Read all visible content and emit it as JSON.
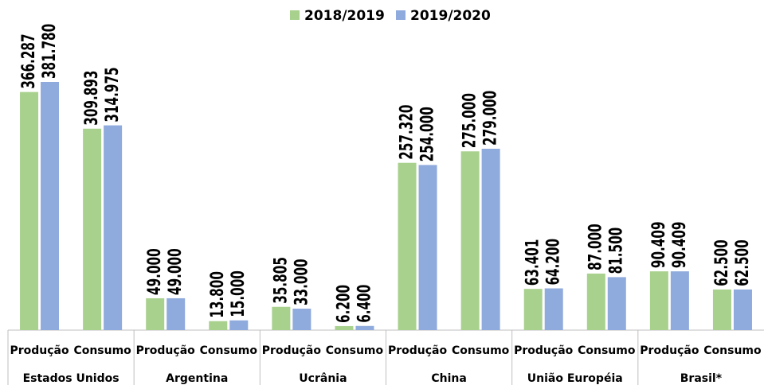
{
  "chart_data": {
    "type": "bar",
    "categories": [
      "Produção",
      "Consumo",
      "Produção",
      "Consumo",
      "Produção",
      "Consumo",
      "Produção",
      "Consumo",
      "Produção",
      "Consumo",
      "Produção",
      "Consumo"
    ],
    "groups": [
      "Estados Unidos",
      "Argentina",
      "Ucrânia",
      "China",
      "União Européia",
      "Brasil*"
    ],
    "series": [
      {
        "name": "2018/2019",
        "color": "#a9d18e",
        "values": [
          366287,
          309893,
          49000,
          13800,
          35805,
          6200,
          257320,
          275000,
          63401,
          87000,
          90409,
          62500
        ],
        "value_labels": [
          "366.287",
          "309.893",
          "49.000",
          "13.800",
          "35.805",
          "6.200",
          "257.320",
          "275.000",
          "63.401",
          "87.000",
          "90.409",
          "62.500"
        ]
      },
      {
        "name": "2019/2020",
        "color": "#8faadc",
        "values": [
          381780,
          314975,
          49000,
          15000,
          33000,
          6400,
          254000,
          279000,
          64200,
          81500,
          90409,
          62500
        ],
        "value_labels": [
          "381.780",
          "314.975",
          "49.000",
          "15.000",
          "33.000",
          "6.400",
          "254.000",
          "279.000",
          "64.200",
          "81.500",
          "90.409",
          "62.500"
        ]
      }
    ],
    "legend": "top"
  }
}
